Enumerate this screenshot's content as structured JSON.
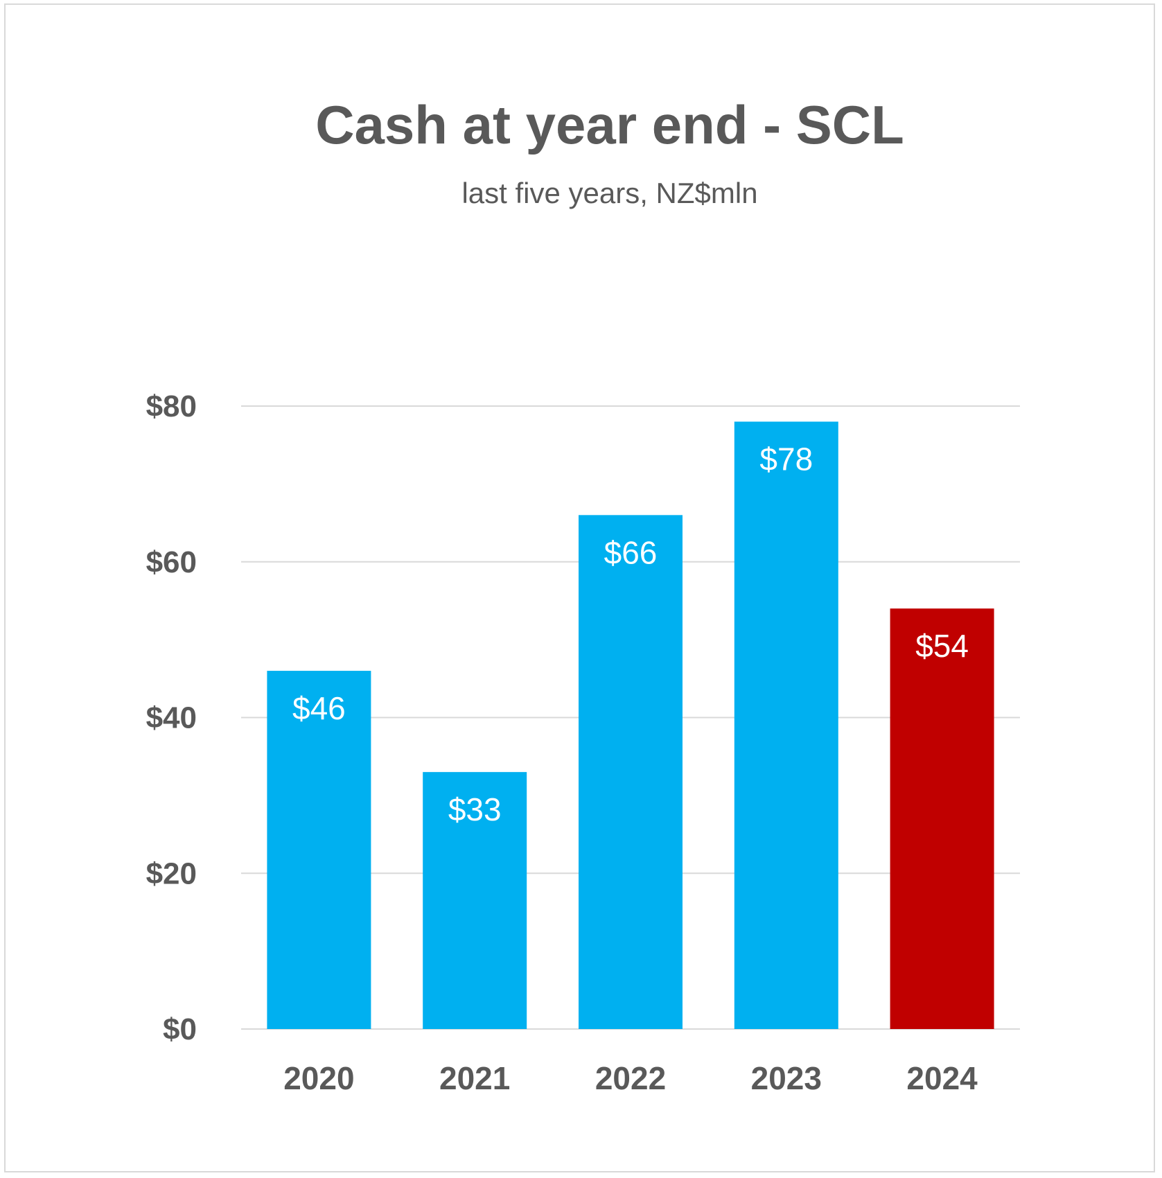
{
  "chart_data": {
    "type": "bar",
    "title": "Cash at year end - SCL",
    "subtitle": "last five years, NZ$mln",
    "categories": [
      "2020",
      "2021",
      "2022",
      "2023",
      "2024"
    ],
    "values": [
      46,
      33,
      66,
      78,
      54
    ],
    "data_labels": [
      "$46",
      "$33",
      "$66",
      "$78",
      "$54"
    ],
    "bar_colors": [
      "#00B0F0",
      "#00B0F0",
      "#00B0F0",
      "#00B0F0",
      "#C00000"
    ],
    "ylim": [
      0,
      80
    ],
    "yticks": [
      0,
      20,
      40,
      60,
      80
    ],
    "ytick_labels": [
      "$0",
      "$20",
      "$40",
      "$60",
      "$80"
    ],
    "xlabel": "",
    "ylabel": "",
    "grid": true,
    "legend": "none"
  },
  "colors": {
    "text": "#595959",
    "grid": "#d9d9d9",
    "frame": "#d9d9d9",
    "data_label": "#ffffff"
  }
}
